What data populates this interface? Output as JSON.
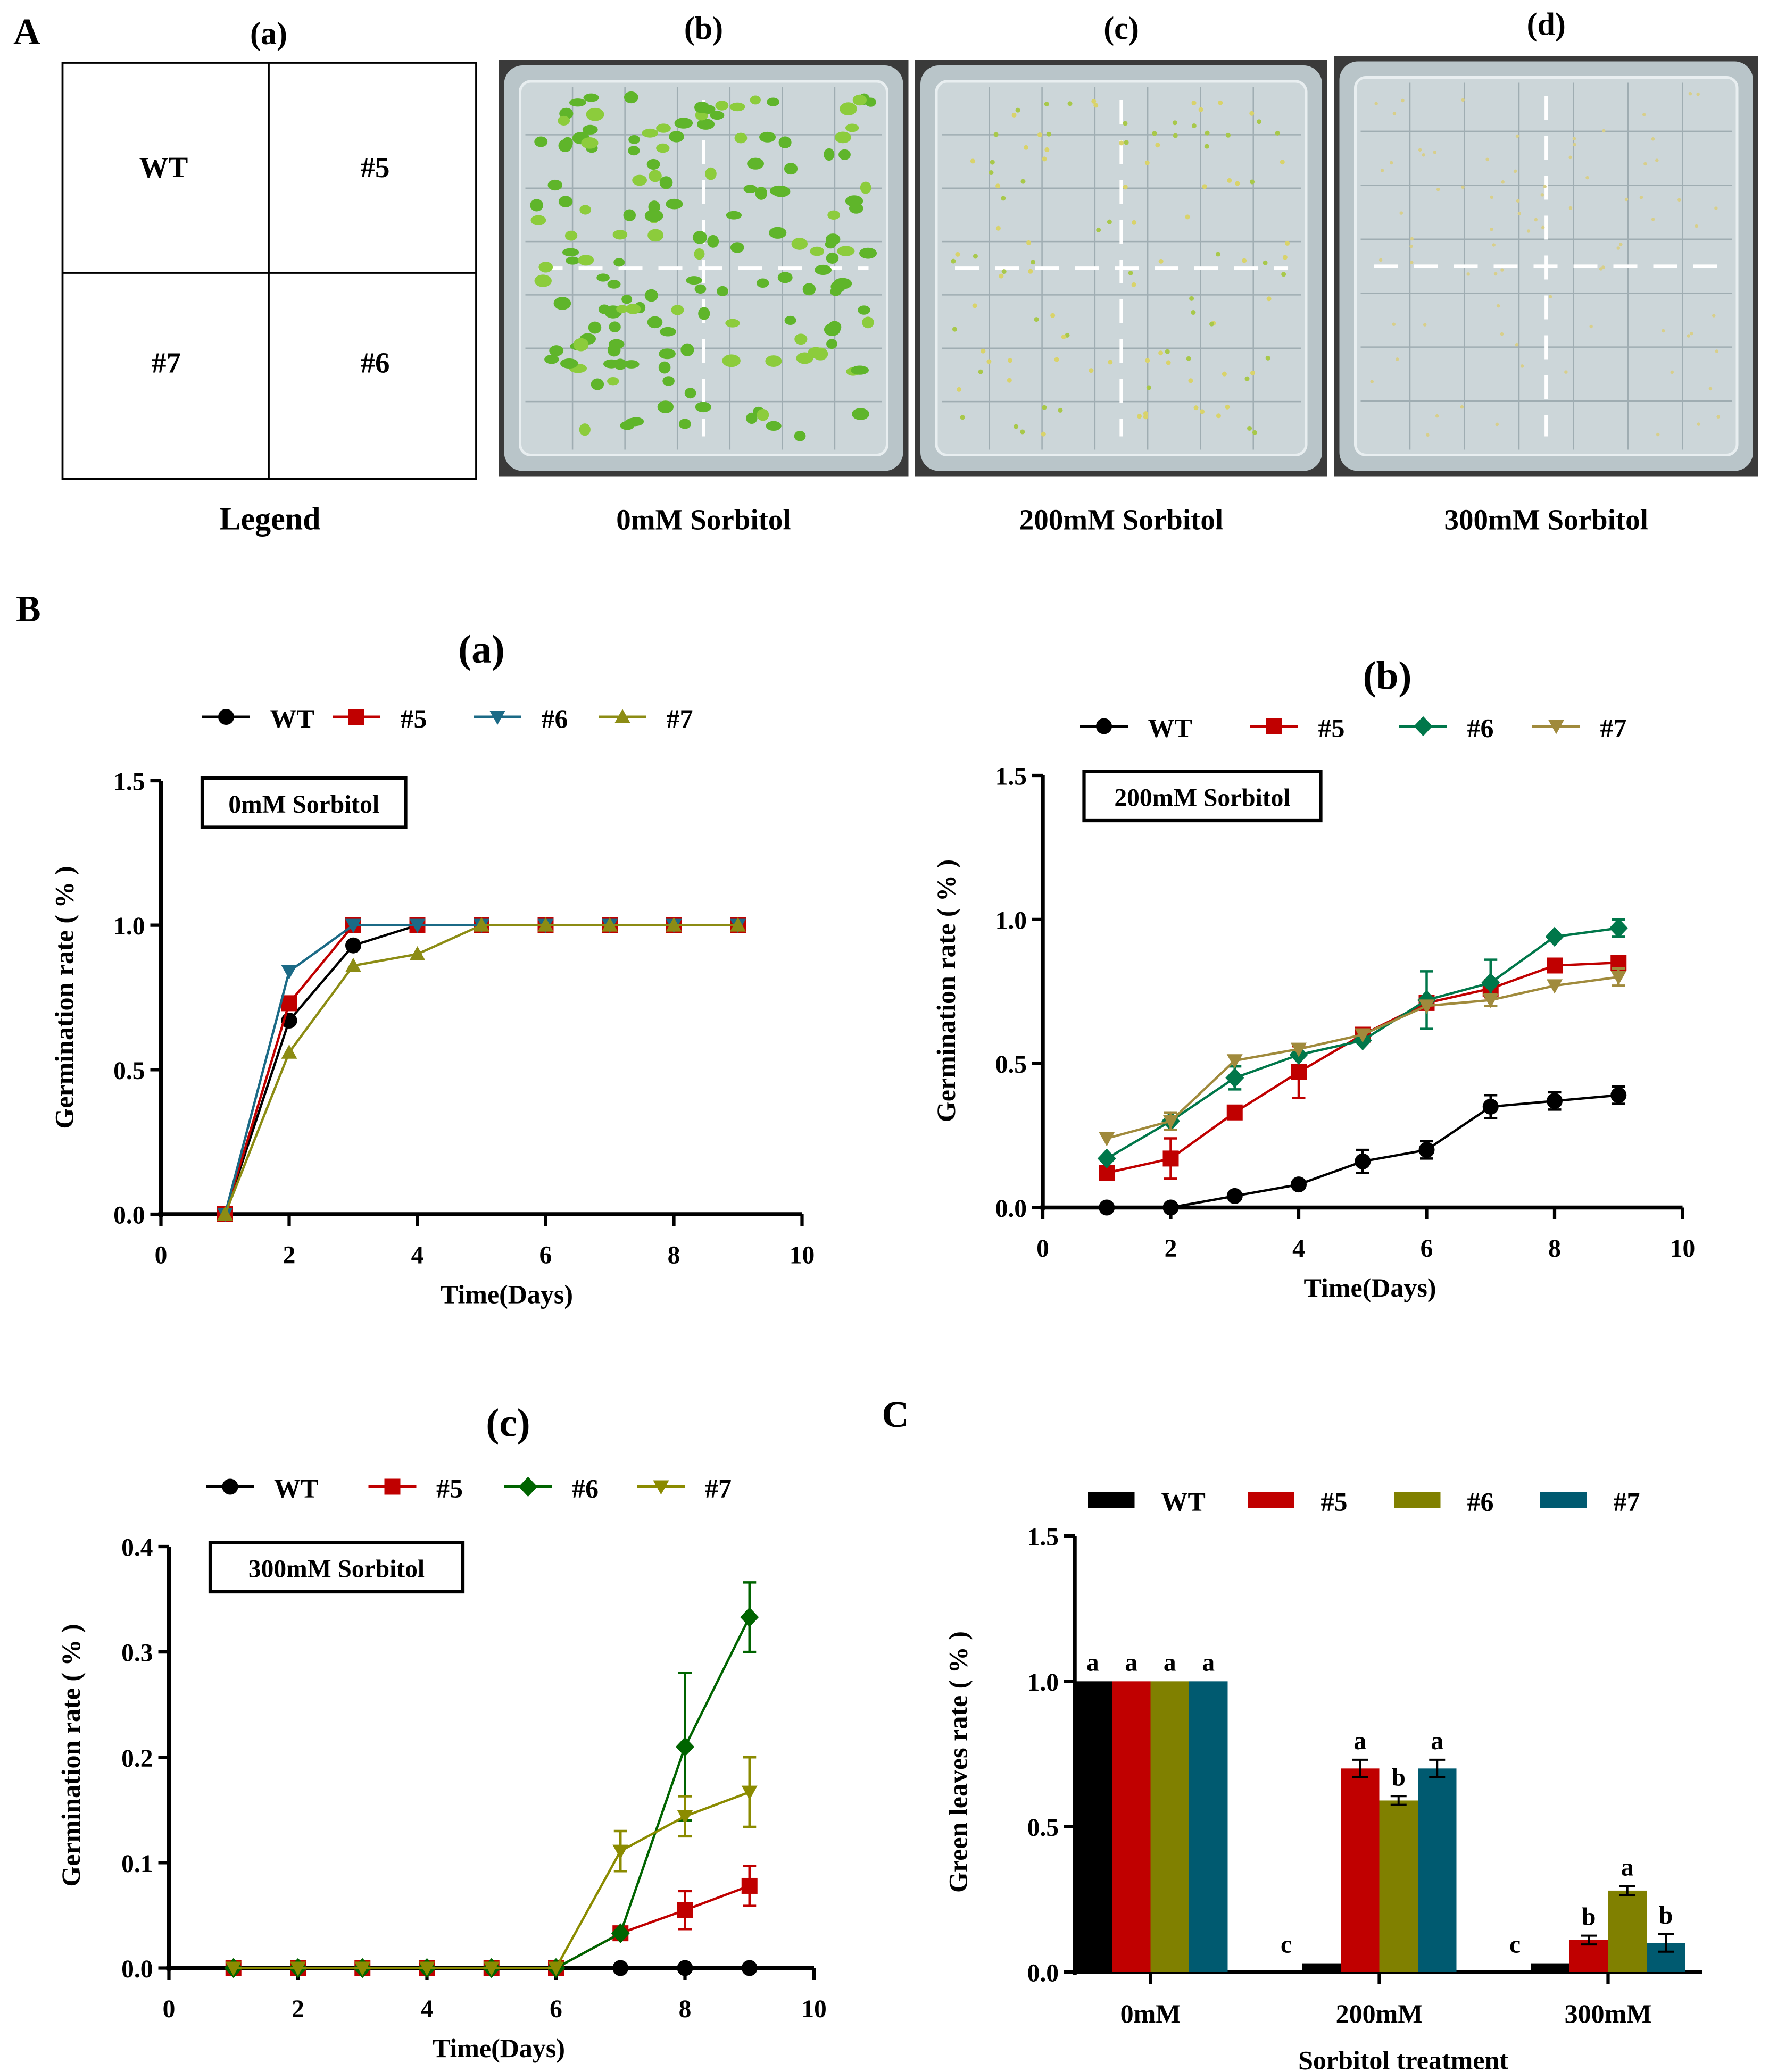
{
  "panelA": {
    "label": "A",
    "legend": {
      "title": "(a)",
      "caption": "Legend",
      "cells": [
        "WT",
        "#5",
        "#7",
        "#6"
      ]
    },
    "plates": [
      {
        "title": "(b)",
        "caption": "0mM Sorbitol",
        "growth": "high"
      },
      {
        "title": "(c)",
        "caption": "200mM Sorbitol",
        "growth": "medium"
      },
      {
        "title": "(d)",
        "caption": "300mM Sorbitol",
        "growth": "low"
      }
    ]
  },
  "panelB": {
    "label": "B"
  },
  "panelC": {
    "label": "C"
  },
  "chart_data": [
    {
      "type": "line",
      "title": "(a)",
      "annotation": "0mM Sorbitol",
      "xlabel": "Time(Days)",
      "ylabel": "Germination rate ( % )",
      "xlim": [
        0,
        10
      ],
      "ylim": [
        0,
        1.5
      ],
      "xticks": [
        "0",
        "2",
        "4",
        "6",
        "8",
        "10"
      ],
      "yticks": [
        "0.0",
        "0.5",
        "1.0",
        "1.5"
      ],
      "x": [
        1,
        2,
        3,
        4,
        5,
        6,
        7,
        8,
        9
      ],
      "legend": "top",
      "series": [
        {
          "name": "WT",
          "color": "#000000",
          "marker": "circle",
          "values": [
            0,
            0.67,
            0.93,
            1,
            1,
            1,
            1,
            1,
            1
          ],
          "errors": [
            0,
            0,
            0,
            0,
            0,
            0,
            0,
            0,
            0
          ]
        },
        {
          "name": "#5",
          "color": "#c00000",
          "marker": "square",
          "values": [
            0,
            0.73,
            1,
            1,
            1,
            1,
            1,
            1,
            1
          ],
          "errors": [
            0,
            0,
            0,
            0,
            0,
            0,
            0,
            0,
            0
          ]
        },
        {
          "name": "#6",
          "color": "#1b6a86",
          "marker": "triangle-down",
          "values": [
            0,
            0.84,
            1,
            1,
            1,
            1,
            1,
            1,
            1
          ],
          "errors": [
            0,
            0,
            0,
            0,
            0,
            0,
            0,
            0,
            0
          ]
        },
        {
          "name": "#7",
          "color": "#8c8c14",
          "marker": "triangle-up",
          "values": [
            0,
            0.56,
            0.86,
            0.9,
            1,
            1,
            1,
            1,
            1
          ],
          "errors": [
            0,
            0,
            0,
            0,
            0,
            0,
            0,
            0,
            0
          ]
        }
      ]
    },
    {
      "type": "line",
      "title": "(b)",
      "annotation": "200mM Sorbitol",
      "xlabel": "Time(Days)",
      "ylabel": "Germination rate ( % )",
      "xlim": [
        0,
        10
      ],
      "ylim": [
        0,
        1.5
      ],
      "xticks": [
        "0",
        "2",
        "4",
        "6",
        "8",
        "10"
      ],
      "yticks": [
        "0.0",
        "0.5",
        "1.0",
        "1.5"
      ],
      "x": [
        1,
        2,
        3,
        4,
        5,
        6,
        7,
        8,
        9
      ],
      "legend": "top",
      "series": [
        {
          "name": "WT",
          "color": "#000000",
          "marker": "circle",
          "values": [
            0,
            0,
            0.04,
            0.08,
            0.16,
            0.2,
            0.35,
            0.37,
            0.39
          ],
          "errors": [
            0,
            0,
            0,
            0,
            0.04,
            0.03,
            0.04,
            0.03,
            0.03
          ]
        },
        {
          "name": "#5",
          "color": "#c00000",
          "marker": "square",
          "values": [
            0.12,
            0.17,
            0.33,
            0.47,
            0.6,
            0.71,
            0.76,
            0.84,
            0.85
          ],
          "errors": [
            0,
            0.07,
            0,
            0.09,
            0,
            0,
            0.03,
            0,
            0
          ]
        },
        {
          "name": "#6",
          "color": "#00774a",
          "marker": "diamond",
          "values": [
            0.17,
            0.3,
            0.45,
            0.53,
            0.58,
            0.72,
            0.78,
            0.94,
            0.97
          ],
          "errors": [
            0,
            0,
            0.04,
            0,
            0,
            0.1,
            0.08,
            0,
            0.03
          ]
        },
        {
          "name": "#7",
          "color": "#a08a3c",
          "marker": "triangle-down",
          "values": [
            0.24,
            0.3,
            0.51,
            0.55,
            0.6,
            0.7,
            0.72,
            0.77,
            0.8
          ],
          "errors": [
            0,
            0.03,
            0,
            0,
            0,
            0,
            0.02,
            0,
            0.03
          ]
        }
      ]
    },
    {
      "type": "line",
      "title": "(c)",
      "annotation": "300mM Sorbitol",
      "xlabel": "Time(Days)",
      "ylabel": "Germination rate ( % )",
      "xlim": [
        0,
        10
      ],
      "ylim": [
        0,
        0.4
      ],
      "xticks": [
        "0",
        "2",
        "4",
        "6",
        "8",
        "10"
      ],
      "yticks": [
        "0.0",
        "0.1",
        "0.2",
        "0.3",
        "0.4"
      ],
      "x": [
        1,
        2,
        3,
        4,
        5,
        6,
        7,
        8,
        9
      ],
      "legend": "top",
      "series": [
        {
          "name": "WT",
          "color": "#000000",
          "marker": "circle",
          "values": [
            0,
            0,
            0,
            0,
            0,
            0,
            0,
            0,
            0
          ],
          "errors": [
            0,
            0,
            0,
            0,
            0,
            0,
            0,
            0,
            0
          ]
        },
        {
          "name": "#5",
          "color": "#c00000",
          "marker": "square",
          "values": [
            0,
            0,
            0,
            0,
            0,
            0,
            0.033,
            0.055,
            0.078
          ],
          "errors": [
            0,
            0,
            0,
            0,
            0,
            0,
            0,
            0.018,
            0.019
          ]
        },
        {
          "name": "#6",
          "color": "#006400",
          "marker": "diamond",
          "values": [
            0,
            0,
            0,
            0,
            0,
            0,
            0.033,
            0.21,
            0.333
          ],
          "errors": [
            0,
            0,
            0,
            0,
            0,
            0,
            0,
            0.07,
            0.033
          ]
        },
        {
          "name": "#7",
          "color": "#8b8b00",
          "marker": "triangle-down",
          "values": [
            0,
            0,
            0,
            0,
            0,
            0,
            0.111,
            0.144,
            0.167
          ],
          "errors": [
            0,
            0,
            0,
            0,
            0,
            0,
            0.019,
            0.019,
            0.033
          ]
        }
      ]
    },
    {
      "type": "bar",
      "title": "",
      "xlabel": "Sorbitol treatment",
      "ylabel": "Green leaves rate ( % )",
      "ylim": [
        0,
        1.5
      ],
      "yticks": [
        "0.0",
        "0.5",
        "1.0",
        "1.5"
      ],
      "categories": [
        "0mM",
        "200mM",
        "300mM"
      ],
      "legend": "top",
      "series": [
        {
          "name": "WT",
          "color": "#000000",
          "values": [
            1,
            0.03,
            0.03
          ],
          "errors": [
            0,
            0,
            0
          ],
          "letters": [
            "a",
            "c",
            "c"
          ]
        },
        {
          "name": "#5",
          "color": "#c00000",
          "values": [
            1,
            0.7,
            0.11
          ],
          "errors": [
            0,
            0.03,
            0.015
          ],
          "letters": [
            "a",
            "a",
            "b"
          ]
        },
        {
          "name": "#6",
          "color": "#808000",
          "values": [
            1,
            0.59,
            0.28
          ],
          "errors": [
            0,
            0.015,
            0.015
          ],
          "letters": [
            "a",
            "b",
            "a"
          ]
        },
        {
          "name": "#7",
          "color": "#005a70",
          "values": [
            1,
            0.7,
            0.1
          ],
          "errors": [
            0,
            0.03,
            0.03
          ],
          "letters": [
            "a",
            "a",
            "b"
          ]
        }
      ]
    }
  ]
}
